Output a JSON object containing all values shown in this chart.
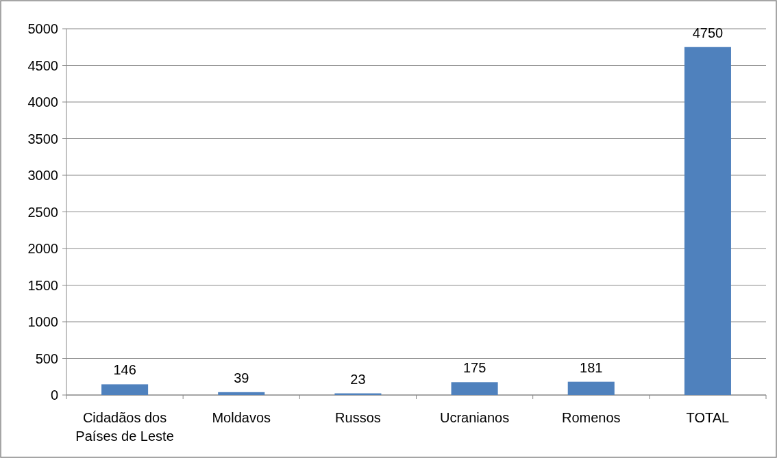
{
  "chart_data": {
    "type": "bar",
    "categories": [
      "Cidadãos dos Países de Leste",
      "Moldavos",
      "Russos",
      "Ucranianos",
      "Romenos",
      "TOTAL"
    ],
    "values": [
      146,
      39,
      23,
      175,
      181,
      4750
    ],
    "color": "#4f81bd",
    "ylim": [
      0,
      5000
    ],
    "yticks": [
      0,
      500,
      1000,
      1500,
      2000,
      2500,
      3000,
      3500,
      4000,
      4500,
      5000
    ],
    "grid": "y",
    "data_labels": true
  }
}
